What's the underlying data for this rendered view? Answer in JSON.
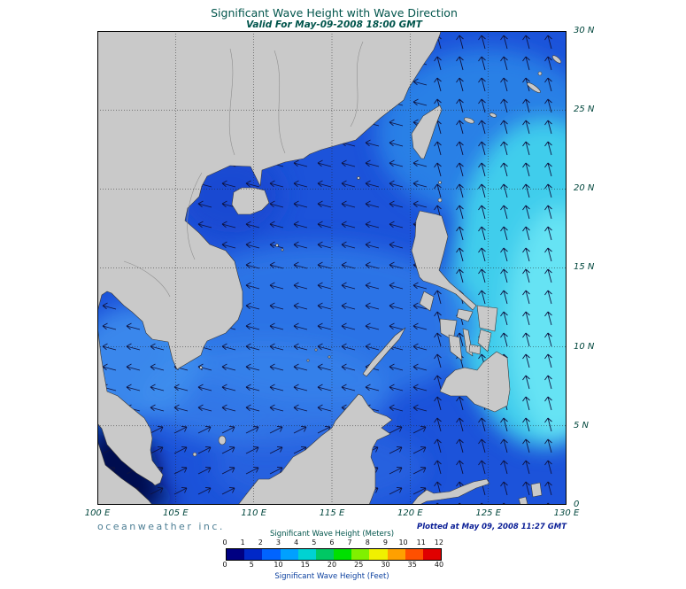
{
  "title": "Significant Wave Height with Wave Direction",
  "subtitle": "Valid For May-09-2008 18:00 GMT",
  "axes": {
    "x_ticks": [
      "100 E",
      "105 E",
      "110 E",
      "115 E",
      "120 E",
      "125 E",
      "130 E"
    ],
    "y_ticks": [
      "30 N",
      "25 N",
      "20 N",
      "15 N",
      "10 N",
      "5 N",
      "0"
    ]
  },
  "branding": "oceanweather inc.",
  "plotted_at": "Plotted at May 09, 2008 11:27 GMT",
  "legend": {
    "meters_label": "Significant Wave Height (Meters)",
    "meters_ticks": [
      "0",
      "1",
      "2",
      "3",
      "4",
      "5",
      "6",
      "7",
      "8",
      "9",
      "10",
      "11",
      "12"
    ],
    "feet_label": "Significant Wave Height (Feet)",
    "feet_ticks": [
      "0",
      "5",
      "10",
      "15",
      "20",
      "25",
      "30",
      "35",
      "40"
    ],
    "colors": [
      "#000082",
      "#0028c8",
      "#0064ff",
      "#00a0ff",
      "#00d2d2",
      "#00c864",
      "#00e000",
      "#80f000",
      "#f0f000",
      "#ffa000",
      "#ff5000",
      "#e00000"
    ]
  }
}
